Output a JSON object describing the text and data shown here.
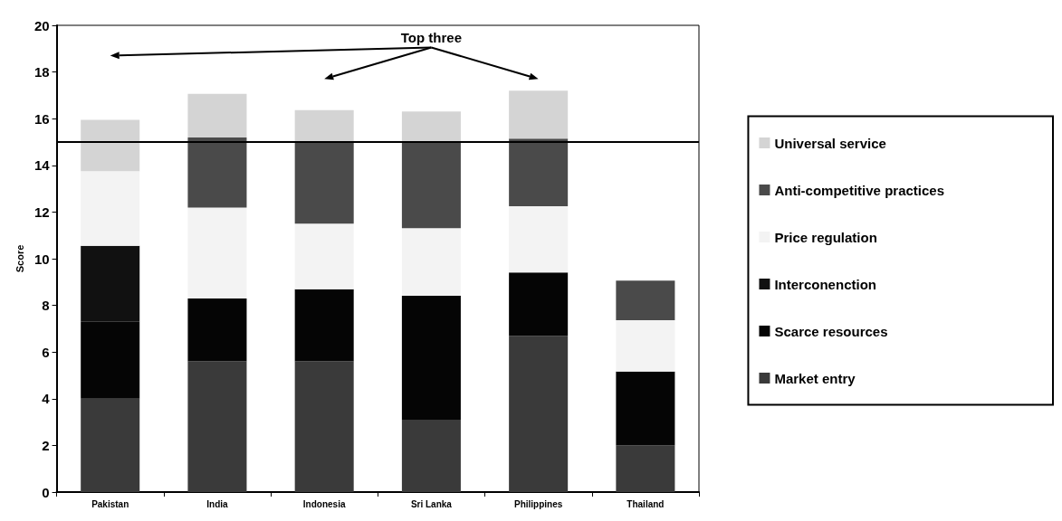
{
  "chart_data": {
    "type": "bar",
    "stacked": true,
    "ylabel": "Score",
    "categories": [
      "Pakistan",
      "India",
      "Indonesia",
      "Sri Lanka",
      "Philippines",
      "Thailand"
    ],
    "series": [
      {
        "name": "Market entry",
        "color": "#3a3a3a",
        "values": [
          4,
          5.6,
          5.6,
          3.1,
          6.7,
          2
        ]
      },
      {
        "name": "Scarce resources",
        "color": "#050505",
        "values": [
          3.3,
          2.69,
          3.09,
          5.31,
          2.71,
          3.16
        ]
      },
      {
        "name": "Interconenction",
        "color": "#111111",
        "values": [
          3.25,
          0,
          0,
          0,
          0,
          0
        ]
      },
      {
        "name": "Price regulation",
        "color": "#f3f3f3",
        "values": [
          3.2,
          3.9,
          2.81,
          2.9,
          2.84,
          2.2
        ]
      },
      {
        "name": "Anti-competitive practices",
        "color": "#4a4a4a",
        "values": [
          0,
          3,
          3.5,
          3.7,
          2.9,
          1.7
        ]
      },
      {
        "name": "Universal service",
        "color": "#d4d4d4",
        "values": [
          2.2,
          1.87,
          1.37,
          1.3,
          2.05,
          0
        ]
      }
    ],
    "ylim": [
      0,
      20
    ],
    "yticks": [
      0,
      2,
      4,
      6,
      8,
      10,
      12,
      14,
      16,
      18,
      20
    ],
    "grid": false,
    "legend": "right",
    "ref_lines": [
      {
        "axis": "y",
        "value": 15,
        "color": "#000000"
      }
    ],
    "annotations": [
      "Top three"
    ]
  }
}
